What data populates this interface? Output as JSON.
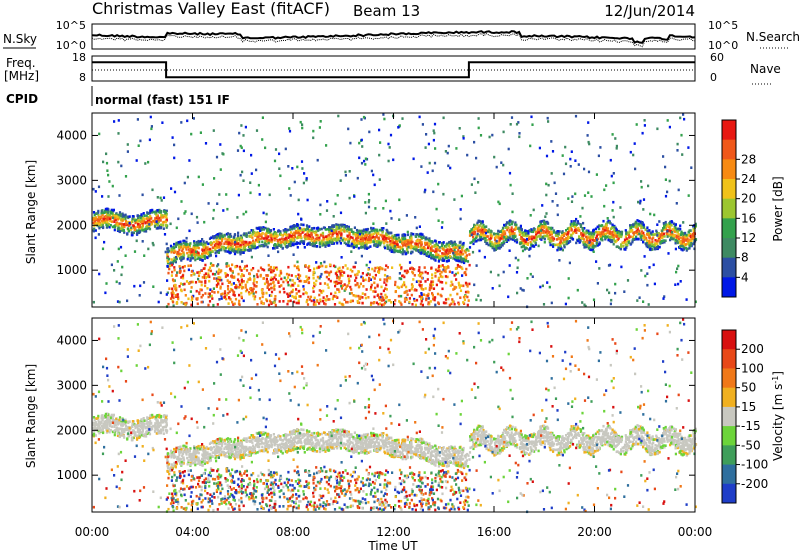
{
  "header": {
    "title": "Christmas Valley East (fitACF)",
    "beam": "Beam 13",
    "date": "12/Jun/2014"
  },
  "strip_labels": {
    "nsky": "N.Sky",
    "nsearch": "N.Search",
    "freq": "Freq.",
    "freq_unit": "[MHz]",
    "nave": "Nave",
    "cpid": "CPID",
    "cpid_value": "normal (fast) 151 IF"
  },
  "chart_data": [
    {
      "type": "line",
      "panel": "noise",
      "y_ticks_left": [
        "10^5",
        "10^0"
      ],
      "y_ticks_right": [
        "10^5",
        "10^0"
      ]
    },
    {
      "type": "line",
      "panel": "frequency-nave",
      "y_ticks_left": [
        "18",
        "8"
      ],
      "y_ticks_right": [
        "60",
        "0"
      ],
      "series": [
        {
          "name": "Freq.",
          "x_hours": [
            0.0,
            2.95,
            2.95,
            15.0,
            15.0,
            24.0
          ],
          "values": [
            15.5,
            15.5,
            9.5,
            9.5,
            15.5,
            15.5
          ]
        }
      ]
    },
    {
      "type": "heatmap",
      "panel": "power",
      "ylabel": "Slant Range [km]",
      "yticks": [
        1000,
        2000,
        3000,
        4000
      ],
      "ylim": [
        180,
        4500
      ],
      "colorbar_label": "Power [dB]",
      "colorbar_ticks": [
        4,
        8,
        12,
        16,
        20,
        24,
        28
      ],
      "colors": [
        "#0018e6",
        "#2c4fa3",
        "#3e8a62",
        "#33a14c",
        "#9cc630",
        "#f0c21a",
        "#f78a12",
        "#f0581a",
        "#e81812"
      ]
    },
    {
      "type": "heatmap",
      "panel": "velocity",
      "ylabel": "Slant Range [km]",
      "yticks": [
        1000,
        2000,
        3000,
        4000
      ],
      "ylim": [
        180,
        4500
      ],
      "colorbar_label": "Velocity [m s^-1]",
      "colorbar_ticks": [
        200,
        100,
        50,
        15,
        -15,
        -50,
        -100,
        -200
      ],
      "colors": [
        "#1f3ec8",
        "#2f6f9e",
        "#3f9e5a",
        "#6cd43a",
        "#c8c8c0",
        "#f0b020",
        "#f07818",
        "#e84818",
        "#d81010"
      ]
    }
  ],
  "xaxis": {
    "label": "Time UT",
    "ticks": [
      "00:00",
      "04:00",
      "08:00",
      "12:00",
      "16:00",
      "20:00",
      "00:00"
    ]
  }
}
